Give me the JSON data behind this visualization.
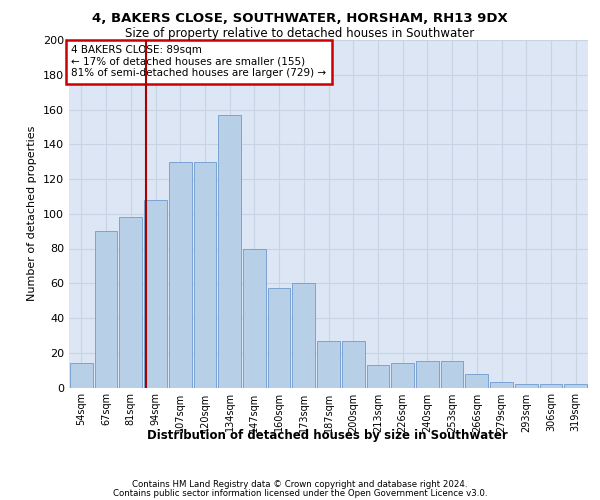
{
  "title1": "4, BAKERS CLOSE, SOUTHWATER, HORSHAM, RH13 9DX",
  "title2": "Size of property relative to detached houses in Southwater",
  "xlabel": "Distribution of detached houses by size in Southwater",
  "ylabel": "Number of detached properties",
  "categories": [
    "54sqm",
    "67sqm",
    "81sqm",
    "94sqm",
    "107sqm",
    "120sqm",
    "134sqm",
    "147sqm",
    "160sqm",
    "173sqm",
    "187sqm",
    "200sqm",
    "213sqm",
    "226sqm",
    "240sqm",
    "253sqm",
    "266sqm",
    "279sqm",
    "293sqm",
    "306sqm",
    "319sqm"
  ],
  "bar_heights": [
    14,
    90,
    98,
    108,
    130,
    130,
    157,
    80,
    57,
    60,
    27,
    27,
    13,
    14,
    15,
    15,
    8,
    3,
    2,
    2,
    2
  ],
  "bar_color": "#b8cfe8",
  "bar_edge_color": "#5b8fc9",
  "grid_color": "#c8d4e4",
  "background_color": "#dce6f4",
  "annotation_text": "4 BAKERS CLOSE: 89sqm\n← 17% of detached houses are smaller (155)\n81% of semi-detached houses are larger (729) →",
  "annotation_box_color": "#ffffff",
  "annotation_box_edge": "#cc0000",
  "red_line_color": "#aa0000",
  "footer1": "Contains HM Land Registry data © Crown copyright and database right 2024.",
  "footer2": "Contains public sector information licensed under the Open Government Licence v3.0.",
  "ylim": [
    0,
    200
  ],
  "yticks": [
    0,
    20,
    40,
    60,
    80,
    100,
    120,
    140,
    160,
    180,
    200
  ],
  "title1_fontsize": 9.5,
  "title2_fontsize": 8.5,
  "ylabel_fontsize": 8,
  "xlabel_fontsize": 8.5,
  "xtick_fontsize": 7,
  "ytick_fontsize": 8,
  "footer_fontsize": 6.2
}
